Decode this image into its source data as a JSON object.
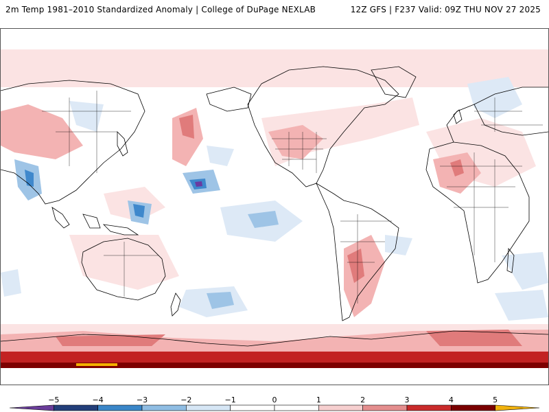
{
  "header": {
    "title": "2m Temp 1981–2010 Standardized Anomaly | College of DuPage NEXLAB",
    "run_info": "12Z GFS | F237 Valid: 09Z THU NOV 27 2025"
  },
  "colorbar": {
    "ticks": [
      "−5",
      "−4",
      "−3",
      "−2",
      "−1",
      "0",
      "1",
      "2",
      "3",
      "4",
      "5"
    ],
    "colors": [
      "#6a3d9a",
      "#233f7a",
      "#3a86c8",
      "#8fbde3",
      "#d6e6f5",
      "#ffffff",
      "#ffffff",
      "#f6cfcf",
      "#e48e8e",
      "#c92b2b",
      "#7a0000",
      "#f1b20d"
    ]
  },
  "map": {
    "palette": {
      "pos1": "#fbe3e3",
      "pos2": "#f3b3b3",
      "pos3": "#e07b7b",
      "pos4": "#c22222",
      "pos5": "#7d0000",
      "neg1": "#dde9f6",
      "neg2": "#9ec4e6",
      "neg3": "#3f88cc",
      "neg4": "#25407c",
      "neg5": "#6a3aa0",
      "land": "#ffffff",
      "coast": "#000000",
      "pos6": "#f5b000"
    }
  }
}
